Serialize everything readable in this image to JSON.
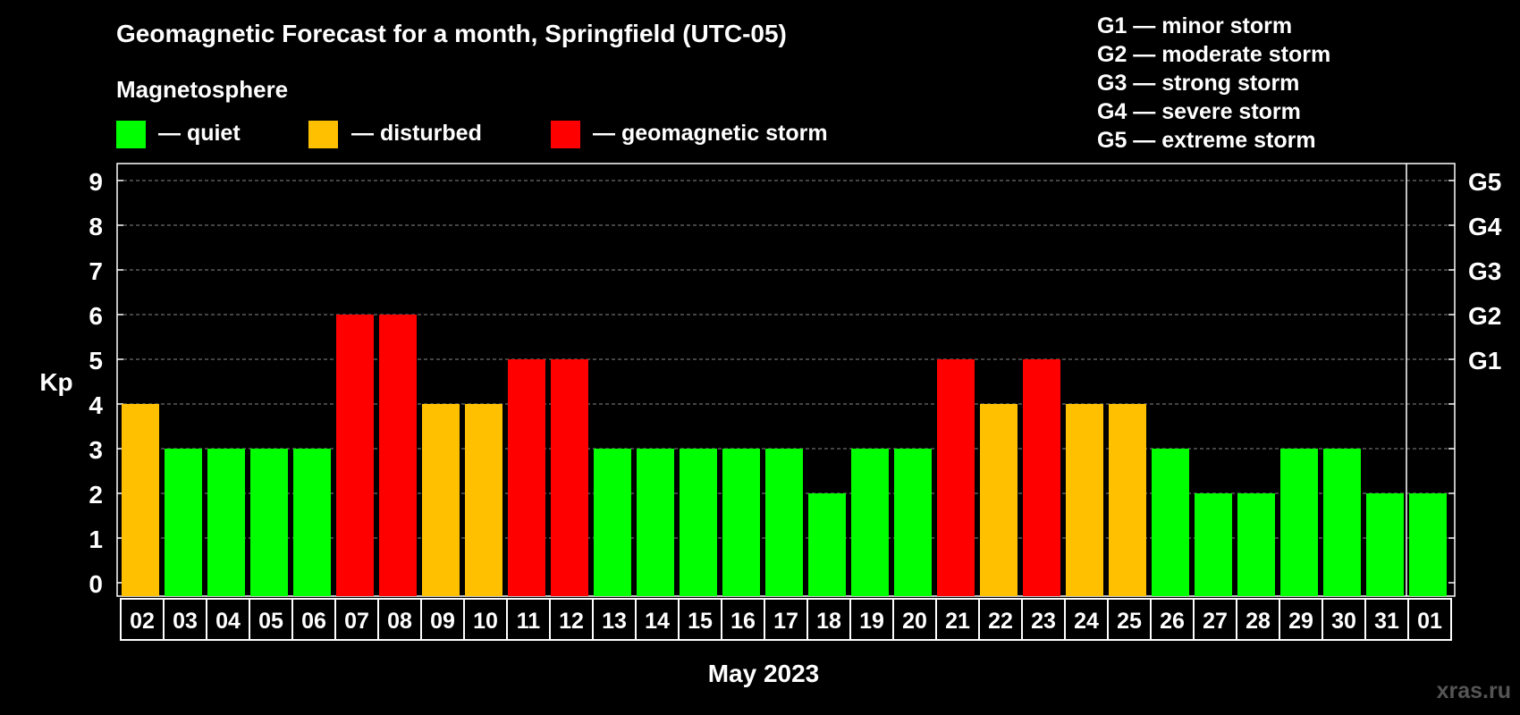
{
  "chart_data": {
    "type": "bar",
    "title": "Geomagnetic Forecast for a month, Springfield (UTC-05)",
    "legend_title": "Magnetosphere",
    "legend": [
      {
        "label": "— quiet",
        "color": "#00ff00"
      },
      {
        "label": "— disturbed",
        "color": "#ffc000"
      },
      {
        "label": "— geomagnetic storm",
        "color": "#ff0000"
      }
    ],
    "storm_scale": [
      "G1 — minor storm",
      "G2 — moderate storm",
      "G3 — strong storm",
      "G4 — severe storm",
      "G5 — extreme storm"
    ],
    "ylabel": "Kp",
    "xlabel": "May 2023",
    "ylim": [
      0,
      9
    ],
    "yticks": [
      "0",
      "1",
      "2",
      "3",
      "4",
      "5",
      "6",
      "7",
      "8",
      "9"
    ],
    "right_axis_labels": [
      {
        "kp": 5,
        "label": "G1"
      },
      {
        "kp": 6,
        "label": "G2"
      },
      {
        "kp": 7,
        "label": "G3"
      },
      {
        "kp": 8,
        "label": "G4"
      },
      {
        "kp": 9,
        "label": "G5"
      }
    ],
    "grid": true,
    "categories": [
      "02",
      "03",
      "04",
      "05",
      "06",
      "07",
      "08",
      "09",
      "10",
      "11",
      "12",
      "13",
      "14",
      "15",
      "16",
      "17",
      "18",
      "19",
      "20",
      "21",
      "22",
      "23",
      "24",
      "25",
      "26",
      "27",
      "28",
      "29",
      "30",
      "31",
      "01"
    ],
    "values": [
      4,
      3,
      3,
      3,
      3,
      6,
      6,
      4,
      4,
      5,
      5,
      3,
      3,
      3,
      3,
      3,
      2,
      3,
      3,
      5,
      4,
      5,
      4,
      4,
      3,
      2,
      2,
      3,
      3,
      2,
      2
    ],
    "colors": {
      "quiet": "#00ff00",
      "disturbed": "#ffc000",
      "storm": "#ff0000"
    },
    "color_rule": "kp<=3 quiet, kp=4 disturbed, kp>=5 storm",
    "month_divider_after": "31"
  },
  "watermark": "xras.ru"
}
